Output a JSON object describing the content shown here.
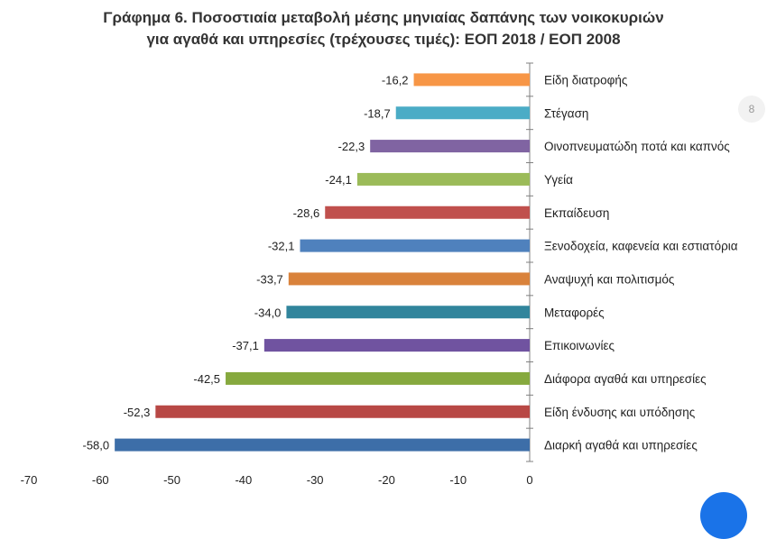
{
  "page_badge": "8",
  "chart_data": {
    "type": "bar",
    "orientation": "horizontal",
    "title": "Γράφημα 6. Ποσοστιαία μεταβολή μέσης μηνιαίας δαπάνης των νοικοκυριών",
    "subtitle": "για αγαθά και υπηρεσίες (τρέχουσες τιμές): ΕΟΠ 2018 / ΕΟΠ 2008",
    "categories": [
      "Είδη διατροφής",
      "Στέγαση",
      "Οινοπνευματώδη ποτά και καπνός",
      "Υγεία",
      "Εκπαίδευση",
      "Ξενοδοχεία, καφενεία και εστιατόρια",
      "Αναψυχή και πολιτισμός",
      "Μεταφορές",
      "Επικοινωνίες",
      "Διάφορα αγαθά και υπηρεσίες",
      "Είδη ένδυσης και υπόδησης",
      "Διαρκή αγαθά και υπηρεσίες"
    ],
    "values": [
      -16.2,
      -18.7,
      -22.3,
      -24.1,
      -28.6,
      -32.1,
      -33.7,
      -34.0,
      -37.1,
      -42.5,
      -52.3,
      -58.0
    ],
    "value_labels": [
      "-16,2",
      "-18,7",
      "-22,3",
      "-24,1",
      "-28,6",
      "-32,1",
      "-33,7",
      "-34,0",
      "-37,1",
      "-42,5",
      "-52,3",
      "-58,0"
    ],
    "colors": [
      "#f79646",
      "#4bacc6",
      "#8064a2",
      "#9bbb59",
      "#c0504d",
      "#4f81bd",
      "#d9823b",
      "#31859c",
      "#7053a0",
      "#86a93e",
      "#b84845",
      "#3d6ea8"
    ],
    "xlim": [
      -70,
      0
    ],
    "xticks": [
      -70,
      -60,
      -50,
      -40,
      -30,
      -20,
      -10,
      0
    ],
    "xtick_labels": [
      "-70",
      "-60",
      "-50",
      "-40",
      "-30",
      "-20",
      "-10",
      "0"
    ],
    "grid": false,
    "legend": "none"
  }
}
